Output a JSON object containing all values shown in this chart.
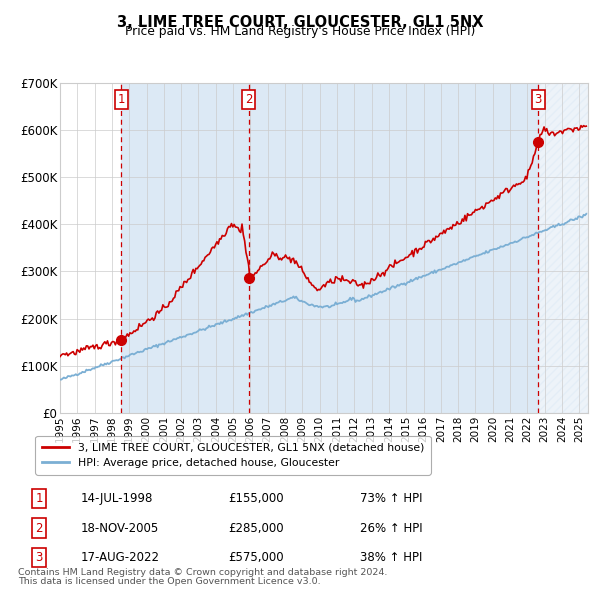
{
  "title": "3, LIME TREE COURT, GLOUCESTER, GL1 5NX",
  "subtitle": "Price paid vs. HM Land Registry's House Price Index (HPI)",
  "ylim": [
    0,
    700000
  ],
  "yticks": [
    0,
    100000,
    200000,
    300000,
    400000,
    500000,
    600000,
    700000
  ],
  "ytick_labels": [
    "£0",
    "£100K",
    "£200K",
    "£300K",
    "£400K",
    "£500K",
    "£600K",
    "£700K"
  ],
  "xstart": 1995.0,
  "xend": 2025.5,
  "sale_dates": [
    1998.54,
    2005.89,
    2022.63
  ],
  "sale_prices": [
    155000,
    285000,
    575000
  ],
  "sale_labels": [
    "1",
    "2",
    "3"
  ],
  "sale_hpi_pct": [
    "73% ↑ HPI",
    "26% ↑ HPI",
    "38% ↑ HPI"
  ],
  "sale_date_str": [
    "14-JUL-1998",
    "18-NOV-2005",
    "17-AUG-2022"
  ],
  "sale_price_str": [
    "£155,000",
    "£285,000",
    "£575,000"
  ],
  "red_line_color": "#cc0000",
  "blue_line_color": "#7bafd4",
  "shading_color": "#dce9f5",
  "dashed_color": "#cc0000",
  "background_color": "#ffffff",
  "grid_color": "#cccccc",
  "legend_line1": "3, LIME TREE COURT, GLOUCESTER, GL1 5NX (detached house)",
  "legend_line2": "HPI: Average price, detached house, Gloucester",
  "footer1": "Contains HM Land Registry data © Crown copyright and database right 2024.",
  "footer2": "This data is licensed under the Open Government Licence v3.0."
}
